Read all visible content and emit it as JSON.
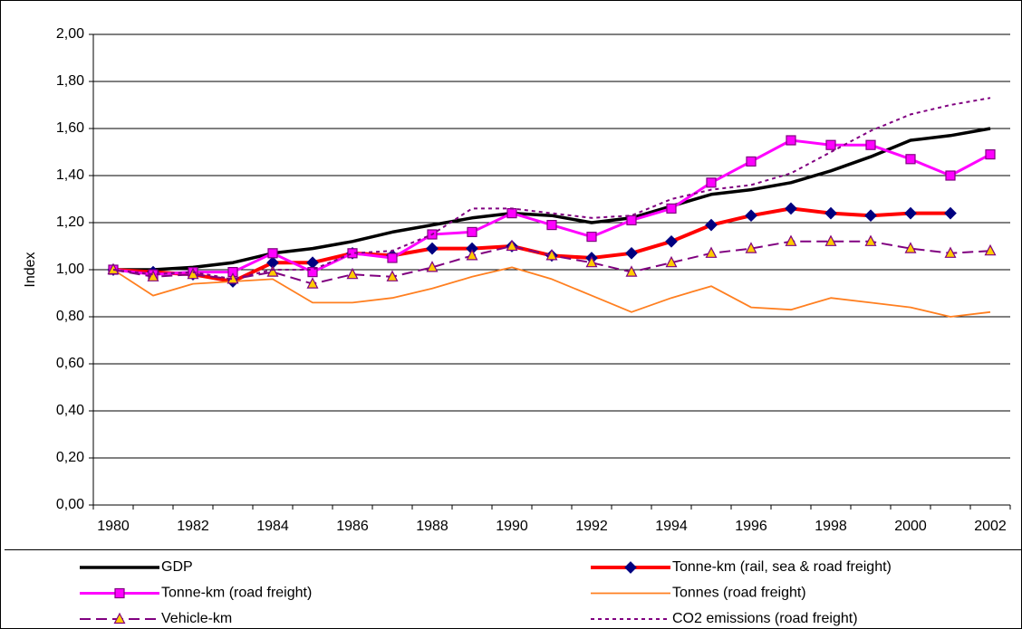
{
  "chart_data": {
    "type": "line",
    "y_label": "Index",
    "categories": [
      "1980",
      null,
      "1982",
      null,
      "1984",
      null,
      "1986",
      null,
      "1988",
      null,
      "1990",
      null,
      "1992",
      null,
      "1994",
      null,
      "1996",
      null,
      "1998",
      null,
      "2000",
      null,
      "2002"
    ],
    "ylim": [
      0,
      2
    ],
    "yticks": [
      {
        "value": 0,
        "label": "0,00"
      },
      {
        "value": 0.2,
        "label": "0,20"
      },
      {
        "value": 0.4,
        "label": "0,40"
      },
      {
        "value": 0.6,
        "label": "0,60"
      },
      {
        "value": 0.8,
        "label": "0,80"
      },
      {
        "value": 1,
        "label": "1,00"
      },
      {
        "value": 1.2,
        "label": "1,20"
      },
      {
        "value": 1.4,
        "label": "1,40"
      },
      {
        "value": 1.6,
        "label": "1,60"
      },
      {
        "value": 1.8,
        "label": "1,80"
      },
      {
        "value": 2,
        "label": "2,00"
      }
    ],
    "grid": true,
    "legend": "bottom",
    "series": [
      {
        "name": "GDP",
        "color": "#000000",
        "width": 3.5,
        "dash": "none",
        "marker": "none",
        "values": [
          1.0,
          1.0,
          1.01,
          1.03,
          1.07,
          1.09,
          1.12,
          1.16,
          1.19,
          1.22,
          1.24,
          1.23,
          1.2,
          1.22,
          1.27,
          1.32,
          1.34,
          1.37,
          1.42,
          1.48,
          1.55,
          1.57,
          1.6
        ]
      },
      {
        "name": "Tonne-km (rail, sea & road freight)",
        "color": "#ff0000",
        "width": 4,
        "dash": "none",
        "marker": "diamond",
        "marker_fill": "#000080",
        "marker_stroke": "#000080",
        "values": [
          1.0,
          0.99,
          0.98,
          0.95,
          1.03,
          1.03,
          1.07,
          1.06,
          1.09,
          1.09,
          1.1,
          1.06,
          1.05,
          1.07,
          1.12,
          1.19,
          1.23,
          1.26,
          1.24,
          1.23,
          1.24,
          1.24,
          null
        ]
      },
      {
        "name": "Tonne-km (road freight)",
        "color": "#ff00ff",
        "width": 3,
        "dash": "none",
        "marker": "square",
        "marker_fill": "#ff00ff",
        "marker_stroke": "#800080",
        "values": [
          1.0,
          0.98,
          0.99,
          0.99,
          1.07,
          0.99,
          1.07,
          1.05,
          1.15,
          1.16,
          1.24,
          1.19,
          1.14,
          1.21,
          1.26,
          1.37,
          1.46,
          1.55,
          1.53,
          1.53,
          1.47,
          1.4,
          1.49
        ]
      },
      {
        "name": "Tonnes (road freight)",
        "color": "#ff7f20",
        "width": 1.8,
        "dash": "none",
        "marker": "none",
        "values": [
          1.0,
          0.89,
          0.94,
          0.95,
          0.96,
          0.86,
          0.86,
          0.88,
          0.92,
          0.97,
          1.01,
          0.96,
          0.89,
          0.82,
          0.88,
          0.93,
          0.84,
          0.83,
          0.88,
          0.86,
          0.84,
          0.8,
          0.82
        ]
      },
      {
        "name": "Vehicle-km",
        "color": "#800080",
        "width": 2,
        "dash": "12 6",
        "marker": "triangle",
        "marker_fill": "#ffcc00",
        "marker_stroke": "#800080",
        "values": [
          1.0,
          0.97,
          0.98,
          0.96,
          0.99,
          0.94,
          0.98,
          0.97,
          1.01,
          1.06,
          1.1,
          1.06,
          1.03,
          0.99,
          1.03,
          1.07,
          1.09,
          1.12,
          1.12,
          1.12,
          1.09,
          1.07,
          1.08
        ]
      },
      {
        "name": "CO2 emissions (road freight)",
        "color": "#800080",
        "width": 2,
        "dash": "4 4",
        "marker": "none",
        "values": [
          1.0,
          0.98,
          0.99,
          0.96,
          1.0,
          1.0,
          1.07,
          1.08,
          1.15,
          1.26,
          1.26,
          1.24,
          1.22,
          1.23,
          1.3,
          1.34,
          1.36,
          1.41,
          1.5,
          1.59,
          1.66,
          1.7,
          1.73
        ]
      }
    ]
  }
}
